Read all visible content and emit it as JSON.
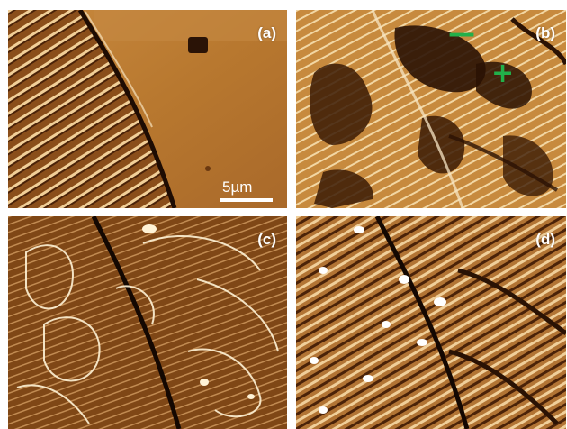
{
  "panels": {
    "a": {
      "label": "(a)",
      "scale_bar": "5µm"
    },
    "b": {
      "label": "(b)",
      "minus_sign": "—",
      "plus_sign": "+"
    },
    "c": {
      "label": "(c)"
    },
    "d": {
      "label": "(d)"
    }
  },
  "colors": {
    "afm_dark": "#3a1a05",
    "afm_mid": "#9a5a1e",
    "afm_light": "#d9a55a",
    "afm_highlight": "#fff3d6",
    "polarity_marker": "#22b04a"
  }
}
